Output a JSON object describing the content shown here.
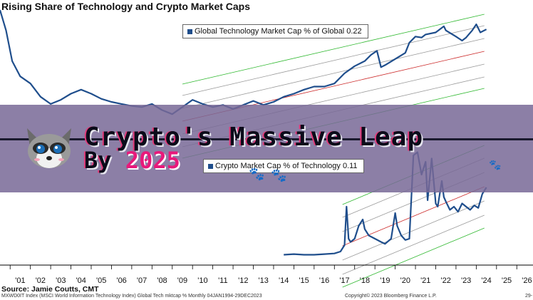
{
  "chart_data": [
    {
      "type": "line",
      "title": "Rising Share of Technology and Crypto Market Caps",
      "xlabel": "",
      "ylabel": "",
      "x_tick_labels": [
        "'01",
        "'02",
        "'03",
        "'04",
        "'05",
        "'06",
        "'07",
        "'08",
        "'09",
        "'10",
        "'11",
        "'12",
        "'13",
        "'14",
        "'15",
        "'16",
        "'17",
        "'18",
        "'19",
        "'20",
        "'21",
        "'22",
        "'23",
        "'24",
        "'25",
        "'26"
      ],
      "series": [
        {
          "name": "Global Technology Market Cap % of Global",
          "last_value": "0.22",
          "color": "#1f4e8c",
          "points": [
            [
              2000.0,
              0.24
            ],
            [
              2000.3,
              0.22
            ],
            [
              2000.6,
              0.19
            ],
            [
              2001.0,
              0.175
            ],
            [
              2001.5,
              0.168
            ],
            [
              2002.0,
              0.155
            ],
            [
              2002.5,
              0.148
            ],
            [
              2003.0,
              0.152
            ],
            [
              2003.5,
              0.158
            ],
            [
              2004.0,
              0.162
            ],
            [
              2004.5,
              0.158
            ],
            [
              2005.0,
              0.153
            ],
            [
              2005.5,
              0.15
            ],
            [
              2006.0,
              0.148
            ],
            [
              2006.5,
              0.146
            ],
            [
              2007.0,
              0.145
            ],
            [
              2007.5,
              0.148
            ],
            [
              2008.0,
              0.142
            ],
            [
              2008.5,
              0.138
            ],
            [
              2009.0,
              0.145
            ],
            [
              2009.5,
              0.152
            ],
            [
              2010.0,
              0.148
            ],
            [
              2010.5,
              0.145
            ],
            [
              2011.0,
              0.147
            ],
            [
              2011.5,
              0.143
            ],
            [
              2012.0,
              0.147
            ],
            [
              2012.5,
              0.151
            ],
            [
              2013.0,
              0.147
            ],
            [
              2013.5,
              0.15
            ],
            [
              2014.0,
              0.155
            ],
            [
              2014.5,
              0.158
            ],
            [
              2015.0,
              0.162
            ],
            [
              2015.5,
              0.165
            ],
            [
              2016.0,
              0.165
            ],
            [
              2016.5,
              0.168
            ],
            [
              2017.0,
              0.178
            ],
            [
              2017.5,
              0.185
            ],
            [
              2018.0,
              0.19
            ],
            [
              2018.3,
              0.196
            ],
            [
              2018.6,
              0.2
            ],
            [
              2018.8,
              0.184
            ],
            [
              2019.0,
              0.186
            ],
            [
              2019.5,
              0.192
            ],
            [
              2020.0,
              0.198
            ],
            [
              2020.2,
              0.208
            ],
            [
              2020.5,
              0.214
            ],
            [
              2020.8,
              0.213
            ],
            [
              2021.0,
              0.216
            ],
            [
              2021.5,
              0.218
            ],
            [
              2021.9,
              0.224
            ],
            [
              2022.0,
              0.22
            ],
            [
              2022.5,
              0.214
            ],
            [
              2022.8,
              0.21
            ],
            [
              2023.0,
              0.213
            ],
            [
              2023.3,
              0.22
            ],
            [
              2023.5,
              0.226
            ],
            [
              2023.7,
              0.218
            ],
            [
              2024.0,
              0.221
            ]
          ]
        },
        {
          "name": "Crypto Market Cap % of Technology",
          "last_value": "0.11",
          "color": "#1f4e8c",
          "points": [
            [
              2014.0,
              0.005
            ],
            [
              2014.5,
              0.006
            ],
            [
              2015.0,
              0.005
            ],
            [
              2015.5,
              0.005
            ],
            [
              2016.0,
              0.006
            ],
            [
              2016.5,
              0.007
            ],
            [
              2016.8,
              0.01
            ],
            [
              2017.0,
              0.02
            ],
            [
              2017.1,
              0.08
            ],
            [
              2017.2,
              0.03
            ],
            [
              2017.3,
              0.025
            ],
            [
              2017.5,
              0.03
            ],
            [
              2017.7,
              0.05
            ],
            [
              2017.9,
              0.06
            ],
            [
              2018.0,
              0.045
            ],
            [
              2018.2,
              0.035
            ],
            [
              2018.5,
              0.03
            ],
            [
              2018.8,
              0.025
            ],
            [
              2019.0,
              0.022
            ],
            [
              2019.3,
              0.03
            ],
            [
              2019.5,
              0.07
            ],
            [
              2019.6,
              0.05
            ],
            [
              2019.8,
              0.035
            ],
            [
              2020.0,
              0.028
            ],
            [
              2020.2,
              0.03
            ],
            [
              2020.4,
              0.16
            ],
            [
              2020.6,
              0.165
            ],
            [
              2020.8,
              0.13
            ],
            [
              2021.0,
              0.15
            ],
            [
              2021.1,
              0.09
            ],
            [
              2021.3,
              0.155
            ],
            [
              2021.5,
              0.085
            ],
            [
              2021.6,
              0.08
            ],
            [
              2021.8,
              0.12
            ],
            [
              2021.9,
              0.095
            ],
            [
              2022.0,
              0.088
            ],
            [
              2022.2,
              0.075
            ],
            [
              2022.4,
              0.08
            ],
            [
              2022.6,
              0.072
            ],
            [
              2022.8,
              0.085
            ],
            [
              2023.0,
              0.08
            ],
            [
              2023.2,
              0.075
            ],
            [
              2023.4,
              0.082
            ],
            [
              2023.6,
              0.078
            ],
            [
              2023.8,
              0.1
            ],
            [
              2024.0,
              0.11
            ]
          ]
        }
      ],
      "trend_channels": {
        "colors": {
          "center": "#cc2a2a",
          "inner": "#9a9a9a",
          "outer": "#2fb82f"
        }
      },
      "top_panel_ylim": [
        0.12,
        0.24
      ],
      "bottom_panel_ylim": [
        0.0,
        0.18
      ],
      "xlim": [
        2000.0,
        2026.3
      ],
      "grid": false,
      "legend_placement": "top-center"
    }
  ],
  "banner": {
    "line1": "Crypto's Massive Leap",
    "line2_prefix": "By ",
    "line2_year": "2025",
    "color": "#7868a0"
  },
  "source_text": "Source: Jamie Coutts, CMT",
  "footer": {
    "left": "MXWD0IT Index (MSCI World Information Technology Index) Global Tech mktcap %  Monthly 04JAN1994-29DEC2023",
    "middle": "Copyright© 2023 Bloomberg Finance L.P.",
    "right": "29-"
  },
  "icons": {
    "mascot": "raccoon-icon",
    "paw": "paw-print-icon"
  }
}
